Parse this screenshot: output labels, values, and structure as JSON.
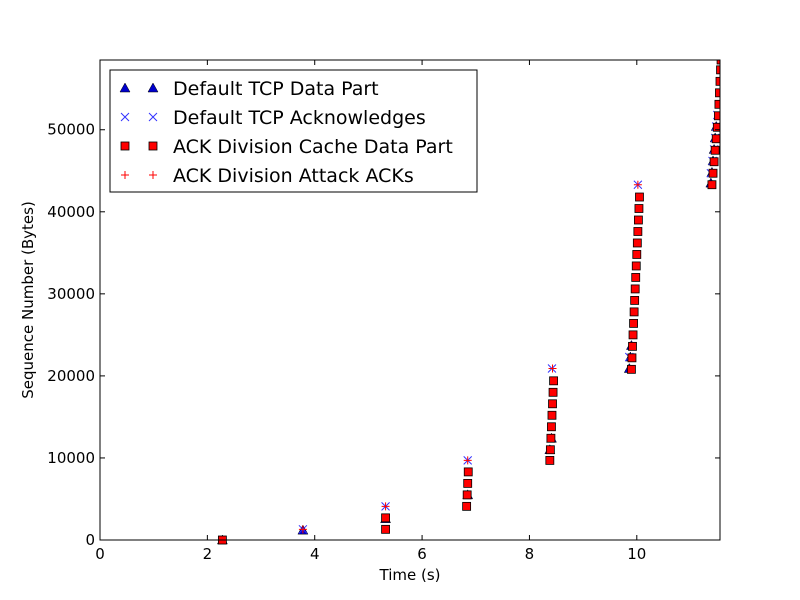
{
  "chart_data": {
    "type": "scatter",
    "xlabel": "Time (s)",
    "ylabel": "Sequence Number (Bytes)",
    "xlim": [
      0,
      11.55
    ],
    "ylim": [
      0,
      58500
    ],
    "xticks": [
      0,
      2,
      4,
      6,
      8,
      10
    ],
    "yticks": [
      0,
      10000,
      20000,
      30000,
      40000,
      50000
    ],
    "grid": false,
    "legend_position": "top-left",
    "colors": {
      "default_data": "#0000cc",
      "default_ack": "#3333ff",
      "cache_data": "#ff0000",
      "attack_ack": "#ff0000",
      "marker_edge": "#000000"
    },
    "series": [
      {
        "name": "Default TCP Data Part",
        "marker": "triangle",
        "points": [
          [
            2.28,
            0
          ],
          [
            3.78,
            1200
          ],
          [
            5.32,
            2600
          ],
          [
            6.85,
            5500
          ],
          [
            8.38,
            11000
          ],
          [
            8.41,
            12400
          ],
          [
            9.86,
            20900
          ],
          [
            9.88,
            22300
          ],
          [
            9.9,
            23700
          ],
          [
            11.38,
            43500
          ],
          [
            11.4,
            44800
          ],
          [
            11.42,
            46200
          ],
          [
            11.44,
            47600
          ],
          [
            11.46,
            49000
          ],
          [
            11.48,
            50400
          ]
        ]
      },
      {
        "name": "Default TCP Acknowledges",
        "marker": "x",
        "points": [
          [
            3.78,
            1300
          ],
          [
            5.32,
            4100
          ],
          [
            6.85,
            9700
          ],
          [
            8.42,
            20900
          ],
          [
            9.86,
            22300
          ],
          [
            10.02,
            43300
          ],
          [
            11.38,
            44700
          ],
          [
            11.41,
            46200
          ],
          [
            11.44,
            47600
          ],
          [
            11.46,
            49000
          ],
          [
            11.48,
            50400
          ],
          [
            11.5,
            51800
          ]
        ]
      },
      {
        "name": "ACK Division Cache Data Part",
        "marker": "square",
        "points": [
          [
            2.28,
            0
          ],
          [
            5.32,
            1300
          ],
          [
            5.32,
            2700
          ],
          [
            6.83,
            4100
          ],
          [
            6.84,
            5500
          ],
          [
            6.85,
            6900
          ],
          [
            6.86,
            8300
          ],
          [
            8.38,
            9700
          ],
          [
            8.39,
            11000
          ],
          [
            8.4,
            12400
          ],
          [
            8.41,
            13800
          ],
          [
            8.42,
            15200
          ],
          [
            8.43,
            16600
          ],
          [
            8.44,
            18000
          ],
          [
            8.45,
            19400
          ],
          [
            9.9,
            20800
          ],
          [
            9.91,
            22200
          ],
          [
            9.92,
            23600
          ],
          [
            9.93,
            25000
          ],
          [
            9.94,
            26400
          ],
          [
            9.95,
            27800
          ],
          [
            9.96,
            29200
          ],
          [
            9.97,
            30600
          ],
          [
            9.98,
            32000
          ],
          [
            9.99,
            33400
          ],
          [
            10.0,
            34800
          ],
          [
            10.01,
            36200
          ],
          [
            10.02,
            37600
          ],
          [
            10.03,
            39000
          ],
          [
            10.04,
            40400
          ],
          [
            10.05,
            41800
          ],
          [
            11.4,
            43300
          ],
          [
            11.42,
            44700
          ],
          [
            11.44,
            46100
          ],
          [
            11.46,
            47500
          ],
          [
            11.48,
            48900
          ],
          [
            11.5,
            50300
          ],
          [
            11.52,
            51700
          ],
          [
            11.53,
            53100
          ],
          [
            11.54,
            54500
          ],
          [
            11.55,
            55900
          ],
          [
            11.56,
            57300
          ],
          [
            11.57,
            58500
          ]
        ]
      },
      {
        "name": "ACK Division Attack ACKs",
        "marker": "plus",
        "points": [
          [
            3.78,
            1300
          ],
          [
            5.32,
            4100
          ],
          [
            6.85,
            9700
          ],
          [
            8.43,
            20900
          ],
          [
            10.02,
            43300
          ]
        ]
      }
    ]
  }
}
